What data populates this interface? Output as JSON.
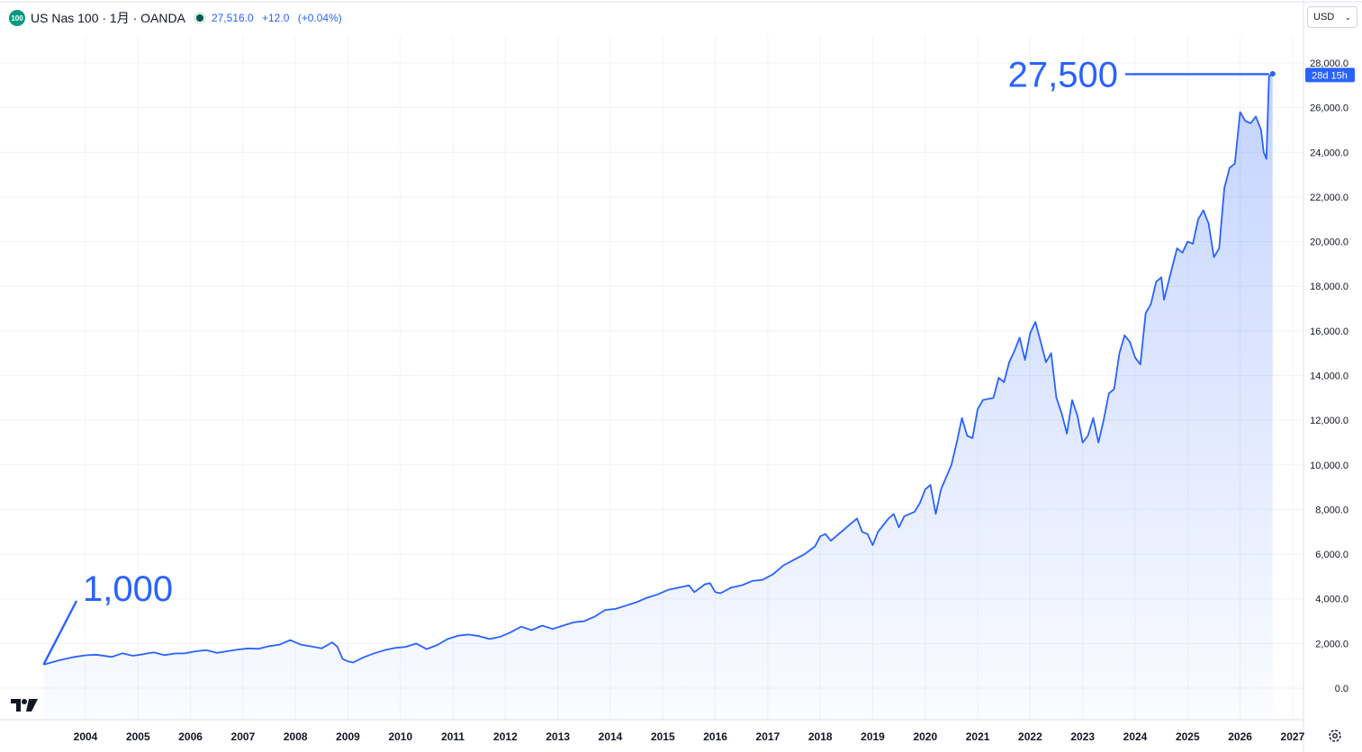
{
  "header": {
    "symbol_badge": "100",
    "title": "US Nas 100 · 1月 · OANDA",
    "last_price": "27,516.0",
    "change": "+12.0",
    "change_pct": "(+0.04%)"
  },
  "currency_selector": {
    "value": "USD",
    "icon": "chevron-down-icon"
  },
  "price_label": {
    "countdown": "28d 15h"
  },
  "colors": {
    "line": "#2962ff",
    "price_tag": "#2962ff",
    "status": "#089981"
  },
  "chart_data": {
    "type": "area",
    "ylim": [
      -1200,
      29000
    ],
    "y_ticks": [
      "0.0",
      "2,000.0",
      "4,000.0",
      "6,000.0",
      "8,000.0",
      "10,000.0",
      "12,000.0",
      "14,000.0",
      "16,000.0",
      "18,000.0",
      "20,000.0",
      "22,000.0",
      "24,000.0",
      "26,000.0",
      "28,000.0"
    ],
    "x_ticks": [
      "2004",
      "2005",
      "2006",
      "2007",
      "2008",
      "2009",
      "2010",
      "2011",
      "2012",
      "2013",
      "2014",
      "2015",
      "2016",
      "2017",
      "2018",
      "2019",
      "2020",
      "2021",
      "2022",
      "2023",
      "2024",
      "2025",
      "2026",
      "2027"
    ],
    "x_start": 2003.2,
    "series": [
      {
        "values": [
          [
            2003.2,
            1050
          ],
          [
            2003.5,
            1250
          ],
          [
            2003.75,
            1380
          ],
          [
            2004.0,
            1470
          ],
          [
            2004.2,
            1500
          ],
          [
            2004.5,
            1400
          ],
          [
            2004.7,
            1560
          ],
          [
            2004.9,
            1450
          ],
          [
            2005.1,
            1520
          ],
          [
            2005.3,
            1600
          ],
          [
            2005.5,
            1480
          ],
          [
            2005.7,
            1550
          ],
          [
            2005.9,
            1560
          ],
          [
            2006.1,
            1650
          ],
          [
            2006.3,
            1700
          ],
          [
            2006.5,
            1580
          ],
          [
            2006.7,
            1650
          ],
          [
            2006.9,
            1730
          ],
          [
            2007.1,
            1780
          ],
          [
            2007.3,
            1760
          ],
          [
            2007.5,
            1880
          ],
          [
            2007.7,
            1950
          ],
          [
            2007.8,
            2050
          ],
          [
            2007.9,
            2150
          ],
          [
            2008.0,
            2050
          ],
          [
            2008.1,
            1950
          ],
          [
            2008.3,
            1870
          ],
          [
            2008.5,
            1780
          ],
          [
            2008.7,
            2050
          ],
          [
            2008.8,
            1850
          ],
          [
            2008.9,
            1300
          ],
          [
            2009.0,
            1200
          ],
          [
            2009.1,
            1150
          ],
          [
            2009.3,
            1380
          ],
          [
            2009.5,
            1560
          ],
          [
            2009.7,
            1700
          ],
          [
            2009.9,
            1800
          ],
          [
            2010.1,
            1850
          ],
          [
            2010.3,
            2000
          ],
          [
            2010.5,
            1750
          ],
          [
            2010.7,
            1930
          ],
          [
            2010.9,
            2200
          ],
          [
            2011.1,
            2350
          ],
          [
            2011.3,
            2400
          ],
          [
            2011.5,
            2330
          ],
          [
            2011.7,
            2200
          ],
          [
            2011.9,
            2300
          ],
          [
            2012.1,
            2500
          ],
          [
            2012.3,
            2750
          ],
          [
            2012.5,
            2600
          ],
          [
            2012.7,
            2800
          ],
          [
            2012.9,
            2650
          ],
          [
            2013.1,
            2800
          ],
          [
            2013.3,
            2950
          ],
          [
            2013.5,
            3000
          ],
          [
            2013.7,
            3200
          ],
          [
            2013.9,
            3500
          ],
          [
            2014.1,
            3550
          ],
          [
            2014.3,
            3700
          ],
          [
            2014.5,
            3850
          ],
          [
            2014.7,
            4050
          ],
          [
            2014.9,
            4200
          ],
          [
            2015.1,
            4400
          ],
          [
            2015.3,
            4500
          ],
          [
            2015.5,
            4600
          ],
          [
            2015.6,
            4300
          ],
          [
            2015.8,
            4650
          ],
          [
            2015.9,
            4700
          ],
          [
            2016.0,
            4300
          ],
          [
            2016.1,
            4250
          ],
          [
            2016.3,
            4500
          ],
          [
            2016.5,
            4600
          ],
          [
            2016.7,
            4800
          ],
          [
            2016.9,
            4850
          ],
          [
            2017.1,
            5100
          ],
          [
            2017.3,
            5500
          ],
          [
            2017.5,
            5750
          ],
          [
            2017.7,
            6000
          ],
          [
            2017.9,
            6350
          ],
          [
            2018.0,
            6800
          ],
          [
            2018.1,
            6900
          ],
          [
            2018.2,
            6600
          ],
          [
            2018.4,
            7000
          ],
          [
            2018.6,
            7400
          ],
          [
            2018.7,
            7600
          ],
          [
            2018.8,
            7000
          ],
          [
            2018.9,
            6900
          ],
          [
            2019.0,
            6400
          ],
          [
            2019.1,
            7000
          ],
          [
            2019.3,
            7600
          ],
          [
            2019.4,
            7800
          ],
          [
            2019.5,
            7200
          ],
          [
            2019.6,
            7700
          ],
          [
            2019.8,
            7900
          ],
          [
            2019.9,
            8300
          ],
          [
            2020.0,
            8900
          ],
          [
            2020.1,
            9100
          ],
          [
            2020.2,
            7800
          ],
          [
            2020.3,
            8900
          ],
          [
            2020.5,
            10000
          ],
          [
            2020.6,
            11000
          ],
          [
            2020.7,
            12100
          ],
          [
            2020.8,
            11300
          ],
          [
            2020.9,
            11200
          ],
          [
            2021.0,
            12500
          ],
          [
            2021.1,
            12900
          ],
          [
            2021.3,
            13000
          ],
          [
            2021.4,
            13900
          ],
          [
            2021.5,
            13700
          ],
          [
            2021.6,
            14600
          ],
          [
            2021.7,
            15100
          ],
          [
            2021.8,
            15700
          ],
          [
            2021.9,
            14700
          ],
          [
            2022.0,
            15900
          ],
          [
            2022.1,
            16400
          ],
          [
            2022.2,
            15500
          ],
          [
            2022.3,
            14600
          ],
          [
            2022.4,
            15000
          ],
          [
            2022.5,
            13000
          ],
          [
            2022.6,
            12300
          ],
          [
            2022.7,
            11400
          ],
          [
            2022.8,
            12900
          ],
          [
            2022.9,
            12200
          ],
          [
            2023.0,
            11000
          ],
          [
            2023.1,
            11300
          ],
          [
            2023.2,
            12100
          ],
          [
            2023.3,
            11000
          ],
          [
            2023.4,
            12000
          ],
          [
            2023.5,
            13200
          ],
          [
            2023.6,
            13400
          ],
          [
            2023.7,
            15000
          ],
          [
            2023.8,
            15800
          ],
          [
            2023.9,
            15500
          ],
          [
            2024.0,
            14800
          ],
          [
            2024.1,
            14500
          ],
          [
            2024.2,
            16800
          ],
          [
            2024.3,
            17200
          ],
          [
            2024.4,
            18200
          ],
          [
            2024.5,
            18400
          ],
          [
            2024.55,
            17400
          ],
          [
            2024.7,
            18800
          ],
          [
            2024.8,
            19700
          ],
          [
            2024.9,
            19500
          ],
          [
            2025.0,
            20000
          ],
          [
            2025.1,
            19900
          ],
          [
            2025.2,
            21000
          ],
          [
            2025.3,
            21400
          ],
          [
            2025.4,
            20800
          ],
          [
            2025.5,
            19300
          ],
          [
            2025.6,
            19700
          ],
          [
            2025.7,
            22400
          ],
          [
            2025.8,
            23300
          ],
          [
            2025.9,
            23500
          ],
          [
            2026.0,
            25800
          ],
          [
            2026.1,
            25400
          ],
          [
            2026.2,
            25300
          ],
          [
            2026.3,
            25600
          ],
          [
            2026.4,
            25000
          ],
          [
            2026.45,
            24000
          ],
          [
            2026.5,
            23700
          ],
          [
            2026.55,
            27400
          ],
          [
            2026.62,
            27516
          ]
        ]
      }
    ],
    "annotations": [
      {
        "text": "1,000",
        "value": 1000,
        "color": "#2962ff"
      },
      {
        "text": "27,500",
        "value": 27500,
        "color": "#2962ff"
      }
    ],
    "grid": true,
    "legend": "none"
  }
}
